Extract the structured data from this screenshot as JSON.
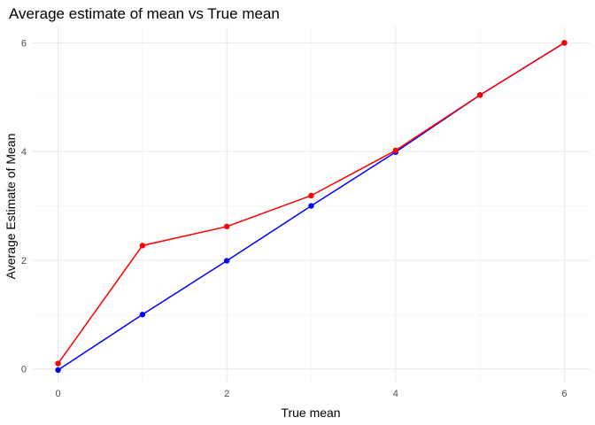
{
  "chart_data": {
    "type": "line",
    "title": "Average estimate of mean vs True mean",
    "xlabel": "True mean",
    "ylabel": "Average Estimate of Mean",
    "xlim": [
      -0.3,
      6.3
    ],
    "ylim": [
      -0.25,
      6.3
    ],
    "xticks": [
      0,
      2,
      4,
      6
    ],
    "yticks": [
      0,
      2,
      4,
      6
    ],
    "grid": true,
    "legend": "none",
    "x": [
      0,
      1,
      2,
      3,
      4,
      5,
      6
    ],
    "series": [
      {
        "color": "#0000ff",
        "values": [
          -0.02,
          1.0,
          1.99,
          3.0,
          3.99,
          5.04,
          6.0
        ]
      },
      {
        "color": "#ff0000",
        "values": [
          0.1,
          2.27,
          2.62,
          3.19,
          4.02,
          5.04,
          6.0
        ]
      }
    ]
  }
}
